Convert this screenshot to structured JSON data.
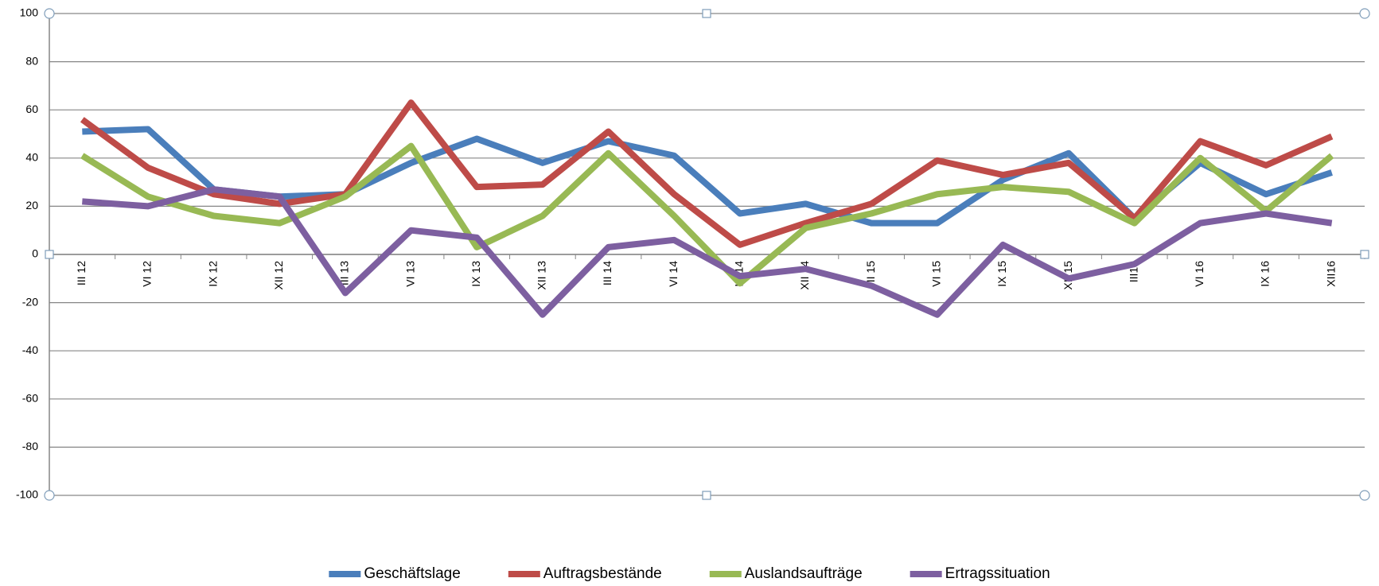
{
  "chart_data": {
    "type": "line",
    "categories": [
      "III 12",
      "VI 12",
      "IX 12",
      "XII 12",
      "III 13",
      "VI 13",
      "IX 13",
      "XII 13",
      "III 14",
      "VI 14",
      "IX 14",
      "XII 14",
      "III 15",
      "VI 15",
      "IX 15",
      "XII 15",
      "III16",
      "VI 16",
      "IX 16",
      "XII16"
    ],
    "series": [
      {
        "name": "Geschäftslage",
        "color": "#4a7ebb",
        "values": [
          51,
          52,
          27,
          24,
          25,
          38,
          48,
          38,
          47,
          41,
          17,
          21,
          13,
          13,
          31,
          42,
          15,
          38,
          25,
          34
        ]
      },
      {
        "name": "Auftragsbestände",
        "color": "#be4b48",
        "values": [
          56,
          36,
          25,
          21,
          25,
          63,
          28,
          29,
          51,
          25,
          4,
          13,
          21,
          39,
          33,
          38,
          15,
          47,
          37,
          49
        ]
      },
      {
        "name": "Auslandsaufträge",
        "color": "#98b954",
        "values": [
          41,
          24,
          16,
          13,
          24,
          45,
          3,
          16,
          42,
          16,
          -12,
          11,
          17,
          25,
          28,
          26,
          13,
          40,
          18,
          41
        ]
      },
      {
        "name": "Ertragssituation",
        "color": "#7d5fa0",
        "values": [
          22,
          20,
          27,
          24,
          -16,
          10,
          7,
          -25,
          3,
          6,
          -9,
          -6,
          -13,
          -25,
          4,
          -10,
          -4,
          13,
          17,
          13
        ]
      }
    ],
    "ylim": [
      -100,
      100
    ],
    "yticks": [
      -100,
      -80,
      -60,
      -40,
      -20,
      0,
      20,
      40,
      60,
      80,
      100
    ],
    "grid": true,
    "legend": "bottom"
  }
}
